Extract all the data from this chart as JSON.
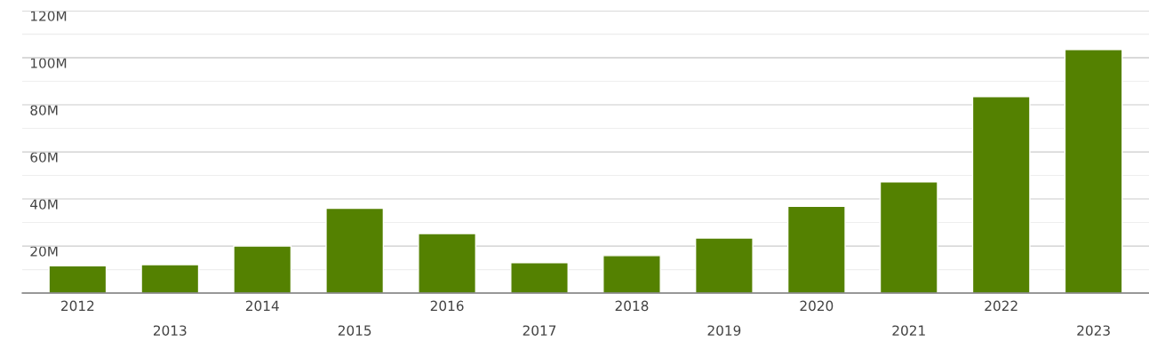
{
  "chart_data": {
    "type": "bar",
    "categories": [
      "2012",
      "2013",
      "2014",
      "2015",
      "2016",
      "2017",
      "2018",
      "2019",
      "2020",
      "2021",
      "2022",
      "2023"
    ],
    "values": [
      11.6,
      12.1,
      20,
      36,
      25.3,
      12.9,
      15.9,
      23.4,
      36.9,
      47.2,
      83.5,
      103.5
    ],
    "color": "#548101",
    "ylim": [
      0,
      120
    ],
    "yticks": [
      {
        "value": 10,
        "label": null
      },
      {
        "value": 20,
        "label": "20M"
      },
      {
        "value": 30,
        "label": null
      },
      {
        "value": 40,
        "label": "40M"
      },
      {
        "value": 50,
        "label": null
      },
      {
        "value": 60,
        "label": "60M"
      },
      {
        "value": 70,
        "label": null
      },
      {
        "value": 80,
        "label": "80M"
      },
      {
        "value": 90,
        "label": null
      },
      {
        "value": 100,
        "label": "100M"
      },
      {
        "value": 110,
        "label": null
      },
      {
        "value": 120,
        "label": "120M"
      }
    ],
    "grid": "y",
    "legend": false
  }
}
